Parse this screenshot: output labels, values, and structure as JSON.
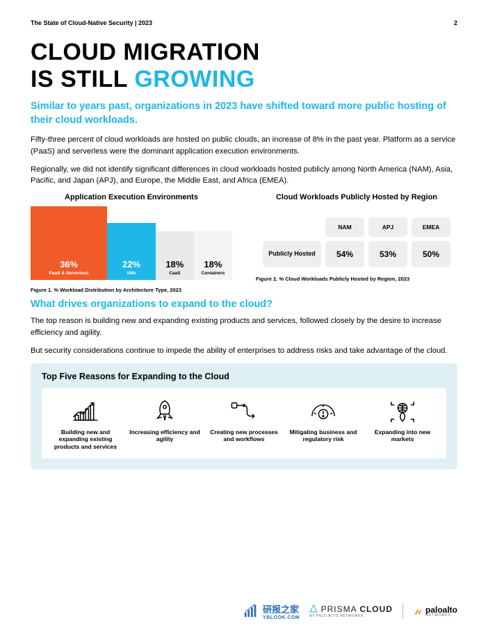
{
  "header": {
    "left": "The State of Cloud-Native Security | 2023",
    "page": "2"
  },
  "title": {
    "line1": "CLOUD MIGRATION",
    "line2a": "IS STILL ",
    "line2b": "GROWING"
  },
  "subhead": "Similar to years past, organizations in 2023 have shifted toward more public hosting of their cloud workloads.",
  "para1": "Fifty-three percent of cloud workloads are hosted on public clouds, an increase of 8% in the past year. Platform as a service (PaaS) and serverless were the dominant application execution environments.",
  "para2": "Regionally, we did not identify significant differences in cloud workloads hosted publicly among North America (NAM), Asia, Pacific, and Japan (APJ), and Europe, the Middle East, and Africa (EMEA).",
  "chart1": {
    "title": "Application Execution Environments",
    "type": "stacked-bar-horizontal-share",
    "bars": [
      {
        "pct": "36%",
        "label": "PaaS & Serverless",
        "width_pct": 38,
        "height_pct": 100,
        "color": "#f15a29",
        "text": "#ffffff"
      },
      {
        "pct": "22%",
        "label": "VMs",
        "width_pct": 24,
        "height_pct": 78,
        "color": "#1fb6e8",
        "text": "#ffffff"
      },
      {
        "pct": "18%",
        "label": "CaaS",
        "width_pct": 19,
        "height_pct": 66,
        "color": "#e9e9e9",
        "text": "#000000"
      },
      {
        "pct": "18%",
        "label": "Containers",
        "width_pct": 19,
        "height_pct": 66,
        "color": "#f4f4f4",
        "text": "#000000"
      }
    ],
    "caption": "Figure 1. % Workload Distribution by Architecture Type, 2023"
  },
  "chart2": {
    "title": "Cloud Workloads Publicly Hosted by Region",
    "row_label": "Publicly Hosted",
    "col_headers": [
      "NAM",
      "APJ",
      "EMEA"
    ],
    "values": [
      "54%",
      "53%",
      "50%"
    ],
    "chip_bg": "#eeeeee",
    "caption": "Figure 2. % Cloud Workloads Publicly Hosted by Region, 2023"
  },
  "section2_heading": "What drives organizations to expand to the cloud?",
  "para3": "The top reason is building new and expanding existing products and services, followed closely by the desire to increase efficiency and agility.",
  "para4": "But security considerations continue to impede the ability of enterprises to address risks and take advantage of the cloud.",
  "reasons": {
    "panel_bg": "#dff0f3",
    "title": "Top Five Reasons for Expanding to the Cloud",
    "items": [
      {
        "label": "Building new and expanding existing products and services"
      },
      {
        "label": "Increasing efficiency and agility"
      },
      {
        "label": "Creating new processes and workflows"
      },
      {
        "label": "Mitigating business and regulatory risk"
      },
      {
        "label": "Expanding into new markets"
      }
    ]
  },
  "footer": {
    "ybook_cn": "研报之家",
    "ybook_url": "YBLOOK.COM",
    "prisma": "PRISMA",
    "prisma_cloud": "CLOUD",
    "prisma_sub": "BY PALO ALTO NETWORKS",
    "paloalto": "paloalto",
    "paloalto_sub": "NETWORKS"
  },
  "colors": {
    "accent": "#1fb6e8",
    "orange": "#f15a29",
    "panel": "#dff0f3",
    "chip": "#eeeeee"
  }
}
